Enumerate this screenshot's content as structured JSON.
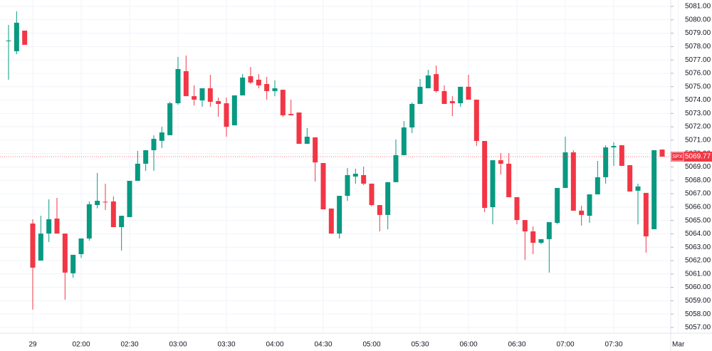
{
  "chart_data": {
    "type": "candlestick",
    "symbol": "SPX",
    "last_price": 5069.77,
    "up_color": "#089981",
    "down_color": "#f23645",
    "grid": true,
    "categories": [
      null,
      null,
      null,
      "29",
      null,
      null,
      null,
      null,
      null,
      "02:00",
      null,
      null,
      null,
      null,
      null,
      "02:30",
      null,
      null,
      null,
      null,
      null,
      "03:00",
      null,
      null,
      null,
      null,
      null,
      "03:30",
      null,
      null,
      null,
      null,
      null,
      "04:00",
      null,
      null,
      null,
      null,
      null,
      "04:30",
      null,
      null,
      null,
      null,
      null,
      "05:00",
      null,
      null,
      null,
      null,
      null,
      "05:30",
      null,
      null,
      null,
      null,
      null,
      "06:00",
      null,
      null,
      null,
      null,
      null,
      "06:30",
      null,
      null,
      null,
      null,
      null,
      "07:00",
      null,
      null,
      null,
      null,
      null,
      "07:30",
      null,
      null,
      null,
      null,
      null,
      null,
      null,
      "Mar"
    ],
    "open": [
      5078.4,
      5077.65,
      5079.19,
      5064.77,
      5062.0,
      5064.02,
      5065.14,
      5064.02,
      5061.05,
      5062.48,
      5063.65,
      5066.15,
      5066.4,
      5066.42,
      5064.5,
      5065.25,
      5067.96,
      5069.24,
      5070.25,
      5070.95,
      5071.37,
      5073.76,
      5076.16,
      5074.29,
      5073.97,
      5074.88,
      5073.92,
      5073.76,
      5072.11,
      5074.35,
      5075.78,
      5075.52,
      5075.2,
      5074.67,
      5074.77,
      5072.96,
      5073.07,
      5070.73,
      5071.21,
      5069.29,
      5065.89,
      5064.02,
      5066.84,
      5068.28,
      5068.39,
      5067.75,
      5066.15,
      5065.41,
      5067.86,
      5069.88,
      5071.95,
      5073.71,
      5074.88,
      5075.94,
      5074.67,
      5073.92,
      5073.76,
      5074.99,
      5074.03,
      5070.94,
      5065.99,
      5069.5,
      5069.24,
      5066.74,
      5065.03,
      5064.18,
      5063.33,
      5063.6,
      5064.82,
      5067.43,
      5070.09,
      5065.73,
      5065.35,
      5066.95,
      5068.23,
      5070.46,
      5070.62,
      5069.13,
      5067.22,
      5067.06,
      5064.34,
      5070.3,
      null,
      null
    ],
    "high": [
      5079.62,
      5080.63,
      5079.19,
      5065.09,
      5065.35,
      5066.58,
      5066.68,
      5064.02,
      5062.43,
      5063.65,
      5066.42,
      5068.55,
      5067.75,
      5066.79,
      5065.35,
      5067.96,
      5070.2,
      5070.25,
      5071.37,
      5072.0,
      5073.87,
      5077.22,
      5077.33,
      5075.1,
      5074.88,
      5075.89,
      5074.19,
      5074.19,
      5074.35,
      5075.94,
      5076.48,
      5075.94,
      5075.73,
      5075.47,
      5074.77,
      5074.03,
      5073.07,
      5071.9,
      5071.21,
      5069.29,
      5065.89,
      5066.84,
      5068.92,
      5068.87,
      5069.03,
      5067.75,
      5066.15,
      5067.86,
      5071.05,
      5072.43,
      5073.81,
      5075.57,
      5076.26,
      5076.58,
      5075.1,
      5074.29,
      5074.99,
      5075.89,
      5074.03,
      5070.94,
      5069.5,
      5070.04,
      5070.04,
      5066.74,
      5065.03,
      5064.55,
      5063.6,
      5064.87,
      5067.43,
      5071.26,
      5070.25,
      5066.1,
      5066.95,
      5069.45,
      5070.62,
      5070.84,
      5070.62,
      5069.13,
      5067.75,
      5067.06,
      5070.25,
      5070.3,
      null,
      null
    ],
    "low": [
      5075.52,
      5077.43,
      5078.13,
      5058.33,
      5062.0,
      5063.38,
      5064.02,
      5059.07,
      5060.72,
      5062.2,
      5063.49,
      5065.9,
      5065.78,
      5064.5,
      5062.75,
      5065.25,
      5067.96,
      5068.71,
      5068.71,
      5070.41,
      5071.37,
      5073.65,
      5074.29,
      5073.6,
      5073.5,
      5073.5,
      5072.75,
      5071.26,
      5072.11,
      5074.35,
      5075.2,
      5074.88,
      5074.03,
      5074.29,
      5072.75,
      5072.86,
      5070.73,
      5070.73,
      5067.91,
      5065.83,
      5064.02,
      5063.65,
      5066.47,
      5067.75,
      5067.64,
      5066.05,
      5064.18,
      5064.34,
      5067.86,
      5069.88,
      5071.53,
      5073.71,
      5074.88,
      5074.56,
      5073.71,
      5072.8,
      5073.5,
      5074.03,
      5070.57,
      5065.62,
      5064.71,
      5068.44,
      5066.74,
      5064.71,
      5062.05,
      5062.48,
      5063.23,
      5061.1,
      5064.71,
      5067.43,
      5065.73,
      5064.61,
      5064.82,
      5066.95,
      5067.75,
      5069.08,
      5069.08,
      5067.16,
      5064.71,
      5062.59,
      5064.34,
      5069.77,
      null,
      null
    ],
    "close": [
      5078.45,
      5079.78,
      5078.13,
      5061.47,
      5064.02,
      5065.09,
      5064.02,
      5061.1,
      5062.43,
      5063.65,
      5066.21,
      5066.47,
      5066.36,
      5064.5,
      5065.35,
      5067.96,
      5069.24,
      5070.25,
      5071.1,
      5071.58,
      5073.76,
      5076.32,
      5074.29,
      5074.03,
      5074.88,
      5073.87,
      5073.71,
      5072.0,
      5074.35,
      5075.68,
      5075.31,
      5075.1,
      5074.67,
      5074.88,
      5072.86,
      5072.86,
      5070.73,
      5071.26,
      5069.34,
      5065.83,
      5064.02,
      5066.84,
      5068.39,
      5068.49,
      5067.75,
      5066.15,
      5065.41,
      5067.86,
      5069.88,
      5071.95,
      5073.71,
      5074.99,
      5075.84,
      5074.67,
      5073.71,
      5073.76,
      5074.99,
      5074.03,
      5070.94,
      5065.94,
      5069.5,
      5069.24,
      5066.74,
      5065.03,
      5064.18,
      5063.33,
      5063.6,
      5064.87,
      5067.43,
      5070.09,
      5065.73,
      5065.41,
      5066.95,
      5068.23,
      5070.46,
      5070.57,
      5069.08,
      5067.16,
      5067.54,
      5063.81,
      5070.25,
      5069.77,
      null,
      null
    ],
    "ylim": [
      5056.57,
      5081.48
    ],
    "yticks": [
      {
        "value": 5081,
        "label": "5081.00"
      },
      {
        "value": 5080,
        "label": "5080.00"
      },
      {
        "value": 5079,
        "label": "5079.00"
      },
      {
        "value": 5078,
        "label": "5078.00"
      },
      {
        "value": 5077,
        "label": "5077.00"
      },
      {
        "value": 5076,
        "label": "5076.00"
      },
      {
        "value": 5075,
        "label": "5075.00"
      },
      {
        "value": 5074,
        "label": "5074.00"
      },
      {
        "value": 5073,
        "label": "5073.00"
      },
      {
        "value": 5072,
        "label": "5072.00"
      },
      {
        "value": 5071,
        "label": "5071.00"
      },
      {
        "value": 5070,
        "label": "5070.00"
      },
      {
        "value": 5069,
        "label": "5069.00"
      },
      {
        "value": 5068,
        "label": "5068.00"
      },
      {
        "value": 5067,
        "label": "5067.00"
      },
      {
        "value": 5066,
        "label": "5066.00"
      },
      {
        "value": 5065,
        "label": "5065.00"
      },
      {
        "value": 5064,
        "label": "5064.00"
      },
      {
        "value": 5063,
        "label": "5063.00"
      },
      {
        "value": 5062,
        "label": "5062.00"
      },
      {
        "value": 5061,
        "label": "5061.00"
      },
      {
        "value": 5060,
        "label": "5060.00"
      },
      {
        "value": 5059,
        "label": "5059.00"
      },
      {
        "value": 5058,
        "label": "5058.00"
      },
      {
        "value": 5057,
        "label": "5057.00"
      }
    ]
  }
}
